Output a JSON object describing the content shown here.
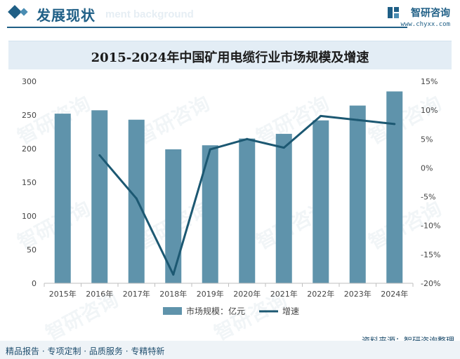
{
  "header": {
    "section_title": "发展现状",
    "section_subtitle": "ment background",
    "brand_name": "智研咨询",
    "brand_url": "www.chyxx.com"
  },
  "watermark": "智研咨询",
  "footer": {
    "tagline": "精品报告 · 专项定制 · 品质服务 · 专精特新",
    "source": "资料来源：智研咨询整理"
  },
  "colors": {
    "bar": "#5f93ab",
    "line": "#1c5872",
    "accent": "#1f5f86"
  },
  "chart_data": {
    "type": "bar",
    "title": "2015-2024年中国矿用电缆行业市场规模及增速",
    "categories": [
      "2015年",
      "2016年",
      "2017年",
      "2018年",
      "2019年",
      "2020年",
      "2021年",
      "2022年",
      "2023年",
      "2024年"
    ],
    "series": [
      {
        "name": "市场规模：亿元",
        "type": "bar",
        "axis": "left",
        "values": [
          252,
          257,
          243,
          199,
          205,
          215,
          222,
          242,
          264,
          285
        ]
      },
      {
        "name": "增速",
        "type": "line",
        "axis": "right",
        "unit": "%",
        "values": [
          null,
          2.2,
          -5.3,
          -18.5,
          3.2,
          5.0,
          3.5,
          9.0,
          8.3,
          7.6
        ]
      }
    ],
    "y_left": {
      "min": 0,
      "max": 300,
      "ticks": [
        "0",
        "50",
        "100",
        "150",
        "200",
        "250",
        "300"
      ]
    },
    "y_right": {
      "min": -20,
      "max": 15,
      "ticks": [
        "-20%",
        "-15%",
        "-10%",
        "-5%",
        "0%",
        "5%",
        "10%",
        "15%"
      ]
    },
    "legend_position": "bottom-center",
    "grid": false
  }
}
